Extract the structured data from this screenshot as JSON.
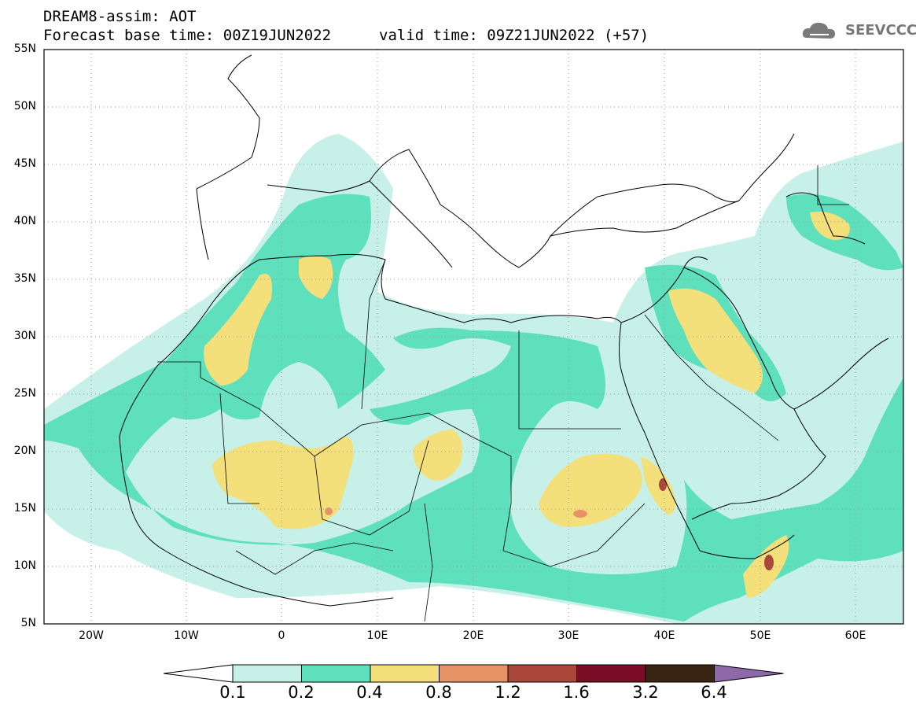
{
  "header": {
    "title": "DREAM8-assim: AOT",
    "base_time": "Forecast base time: 00Z19JUN2022",
    "valid_time": "valid time: 09Z21JUN2022 (+57)"
  },
  "logo": {
    "text": "SEEVCCC",
    "icon": "cloud-icon"
  },
  "map": {
    "lat_labels": [
      "55N",
      "50N",
      "45N",
      "40N",
      "35N",
      "30N",
      "25N",
      "20N",
      "15N",
      "10N",
      "5N"
    ],
    "lon_labels": [
      "20W",
      "10W",
      "0",
      "10E",
      "20E",
      "30E",
      "40E",
      "50E",
      "60E"
    ],
    "grid": true
  },
  "colorbar": {
    "levels": [
      "0.1",
      "0.2",
      "0.4",
      "0.8",
      "1.2",
      "1.6",
      "3.2",
      "6.4"
    ],
    "colors": [
      "#ffffff",
      "#c7f0e9",
      "#5ee0bd",
      "#f3e07a",
      "#e89268",
      "#a8473a",
      "#7a0c26",
      "#3a2512",
      "#8e68a8"
    ]
  }
}
